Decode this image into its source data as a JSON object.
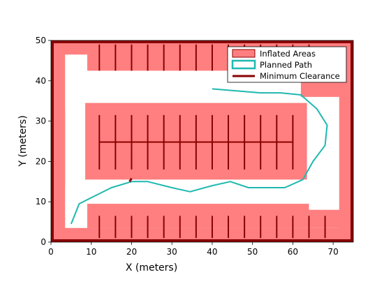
{
  "chart_data": {
    "type": "map",
    "title": "",
    "xlabel": "X (meters)",
    "ylabel": "Y (meters)",
    "xlim": [
      0,
      75
    ],
    "ylim": [
      0,
      50
    ],
    "xticks": [
      0,
      10,
      20,
      30,
      40,
      50,
      60,
      70
    ],
    "yticks": [
      0,
      10,
      20,
      30,
      40,
      50
    ],
    "grid": false,
    "legend_position": "top-right",
    "colors": {
      "inflated": "#ff7f80",
      "obstacle": "#8b0000",
      "path": "#1fb8b0",
      "clearance": "#8b0000"
    },
    "legend": [
      {
        "key": "inflated",
        "label": "Inflated Areas"
      },
      {
        "key": "path",
        "label": "Planned Path"
      },
      {
        "key": "clearance",
        "label": "Minimum Clearance"
      }
    ],
    "inflated_areas": [
      {
        "x0": 0,
        "x1": 75,
        "y0": 0,
        "y1": 3.5
      },
      {
        "x0": 0,
        "x1": 75,
        "y0": 46.5,
        "y1": 50
      },
      {
        "x0": 0,
        "x1": 3.5,
        "y0": 0,
        "y1": 50
      },
      {
        "x0": 71.5,
        "x1": 75,
        "y0": 0,
        "y1": 50
      },
      {
        "x0": 0,
        "x1": 3.5,
        "y0": 14,
        "y1": 33
      },
      {
        "x0": 9,
        "x1": 70,
        "y0": 42.5,
        "y1": 50
      },
      {
        "x0": 62,
        "x1": 74,
        "y0": 36,
        "y1": 40
      },
      {
        "x0": 9,
        "x1": 64,
        "y0": 3.5,
        "y1": 9.5
      },
      {
        "x0": 9,
        "x1": 75,
        "y0": 3.5,
        "y1": 8
      },
      {
        "x0": 8.5,
        "x1": 63.5,
        "y0": 15.5,
        "y1": 34.5
      }
    ],
    "obstacle_lines": {
      "top_stalls_x": [
        12,
        16,
        20,
        24,
        28,
        32,
        36,
        40,
        44,
        48,
        52,
        56,
        60,
        64
      ],
      "top_stalls_y": [
        42.5,
        49
      ],
      "bottom_stalls_x": [
        12,
        16,
        20,
        24,
        28,
        32,
        36,
        40,
        44,
        48,
        52,
        56,
        60,
        64,
        68
      ],
      "bottom_stalls_y": [
        1,
        6.5
      ],
      "middle_spine": {
        "x0": 12,
        "x1": 60,
        "y": 24.8
      },
      "middle_stalls_x": [
        12,
        16,
        20,
        24,
        28,
        32,
        36,
        40,
        44,
        48,
        52,
        56,
        60
      ],
      "middle_stalls_y": [
        18,
        31.5
      ]
    },
    "path": {
      "x": [
        5,
        7,
        11,
        15,
        20,
        24,
        30,
        34.5,
        40,
        44.5,
        49,
        53,
        58,
        62.5,
        65,
        68,
        68.5,
        66,
        62,
        57,
        52,
        46,
        40
      ],
      "y": [
        4.5,
        9.5,
        11.5,
        13.5,
        15,
        15,
        13.5,
        12.5,
        14,
        15,
        13.5,
        13.5,
        13.5,
        15.5,
        20,
        24,
        29,
        33,
        36.5,
        37,
        37,
        37.5,
        38
      ]
    },
    "min_clearance": {
      "x": [
        19.5,
        20
      ],
      "y": [
        15,
        15.8
      ]
    }
  }
}
